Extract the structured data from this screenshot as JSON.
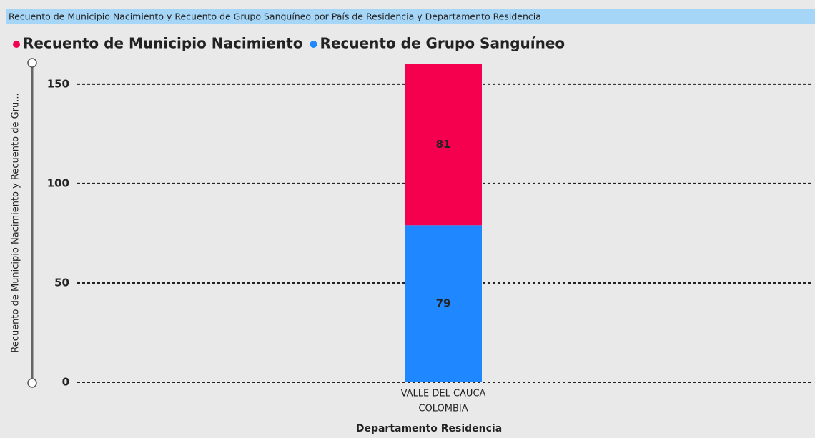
{
  "chart_data": {
    "type": "stacked_bar",
    "title": "Recuento de Municipio Nacimiento y Recuento de Grupo Sanguíneo por País de Residencia y Departamento Residencia",
    "x_label": "Departamento Residencia",
    "y_label": "Recuento de Municipio Nacimiento y Recuento de Gru...",
    "categories": [
      "VALLE DEL CAUCA"
    ],
    "category_groups": [
      "COLOMBIA"
    ],
    "series": [
      {
        "name": "Recuento de Municipio Nacimiento",
        "color": "#f5004f",
        "values": [
          81
        ]
      },
      {
        "name": "Recuento de Grupo Sanguíneo",
        "color": "#1f87ff",
        "values": [
          79
        ]
      }
    ],
    "ylim": [
      0,
      160
    ],
    "yticks": [
      0,
      50,
      100,
      150
    ],
    "grid": true
  }
}
